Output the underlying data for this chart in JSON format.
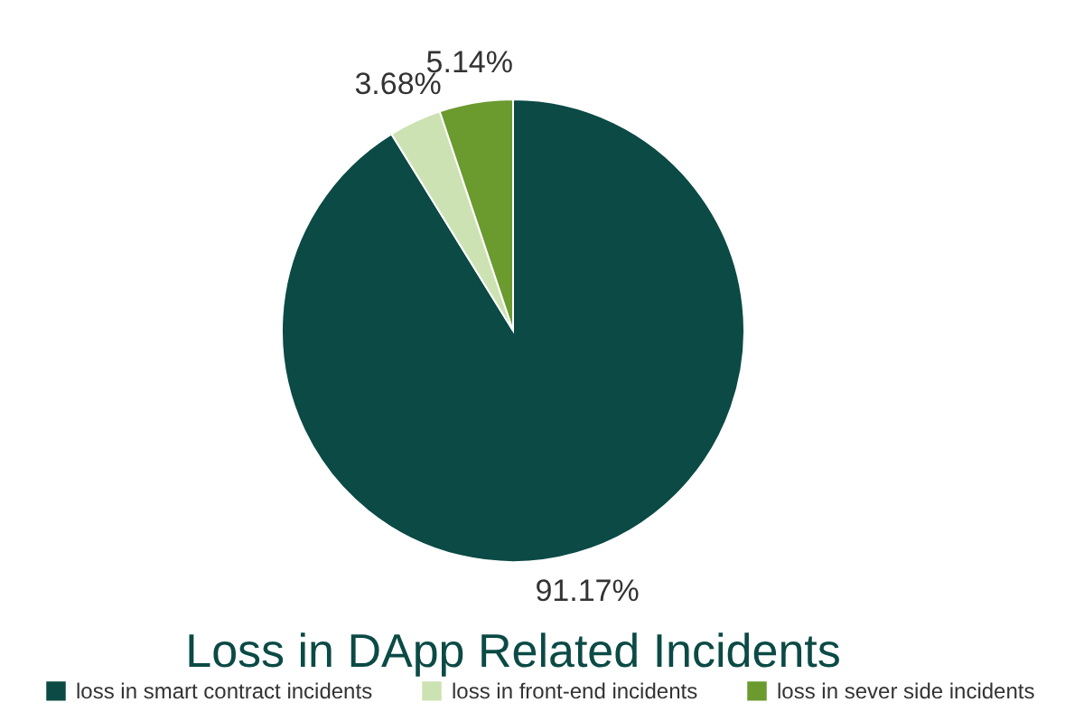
{
  "chart_data": {
    "type": "pie",
    "title": "Loss in DApp Related Incidents",
    "categories": [
      "loss in smart contract incidents",
      "loss in front-end incidents",
      "loss in sever side incidents"
    ],
    "values": [
      91.17,
      3.68,
      5.14
    ],
    "value_labels": [
      "91.17%",
      "3.68%",
      "5.14%"
    ],
    "colors": [
      "#0b4a45",
      "#cde2b3",
      "#6b9a2f"
    ],
    "legend": "bottom"
  }
}
